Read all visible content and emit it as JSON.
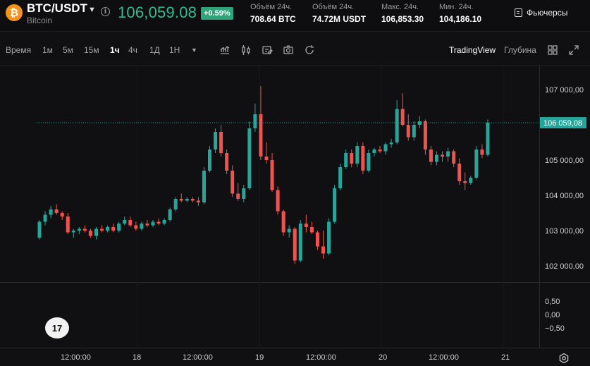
{
  "header": {
    "pair": "BTC/USDT",
    "coin_name": "Bitcoin",
    "logo_glyph": "₿",
    "price": "106,059.08",
    "change": "+0.59%",
    "stats": [
      {
        "label": "Объём 24ч.",
        "value": "708.64 BTC"
      },
      {
        "label": "Объём 24ч.",
        "value": "74.72M USDT"
      },
      {
        "label": "Макс. 24ч.",
        "value": "106,853.30"
      },
      {
        "label": "Мин. 24ч.",
        "value": "104,186.10"
      }
    ],
    "futures_label": "Фьючерсы"
  },
  "toolbar": {
    "time_label": "Время",
    "intervals": [
      "1м",
      "5м",
      "15м",
      "1ч",
      "4ч",
      "1Д",
      "1Н"
    ],
    "active_interval": "1ч",
    "views": [
      "TradingView",
      "Глубина"
    ],
    "active_view": "TradingView"
  },
  "colors": {
    "up": "#26a69a",
    "down": "#ef5350",
    "price_badge": "#26a69a"
  },
  "chart_data": {
    "type": "candlestick",
    "price_ticks": [
      "107 000,00",
      "106 000,00",
      "105 000,00",
      "104 000,00",
      "103 000,00",
      "102 000,00"
    ],
    "price_tick_values": [
      107000,
      106000,
      105000,
      104000,
      103000,
      102000
    ],
    "current_price_label": "106 059,08",
    "current_price": 106059.08,
    "indicator_ticks": [
      "0,50",
      "0,00",
      "−0,50"
    ],
    "indicator_tick_values": [
      0.5,
      0.0,
      -0.5
    ],
    "x_labels": [
      "12:00:00",
      "18",
      "12:00:00",
      "19",
      "12:00:00",
      "20",
      "12:00:00",
      "21"
    ],
    "candles": [
      [
        102800,
        103300,
        102750,
        103250
      ],
      [
        103250,
        103550,
        103150,
        103450
      ],
      [
        103450,
        103700,
        103350,
        103600
      ],
      [
        103600,
        103750,
        103450,
        103500
      ],
      [
        103500,
        103550,
        103300,
        103400
      ],
      [
        103400,
        103500,
        102900,
        102950
      ],
      [
        102950,
        103050,
        102800,
        103000
      ],
      [
        103000,
        103100,
        102900,
        103050
      ],
      [
        103050,
        103150,
        102950,
        103000
      ],
      [
        103000,
        103050,
        102800,
        102850
      ],
      [
        102850,
        103100,
        102750,
        103050
      ],
      [
        103050,
        103150,
        102950,
        103000
      ],
      [
        103000,
        103150,
        102950,
        103100
      ],
      [
        103100,
        103200,
        102950,
        103000
      ],
      [
        103000,
        103250,
        102950,
        103200
      ],
      [
        103200,
        103400,
        103150,
        103300
      ],
      [
        103300,
        103400,
        103100,
        103150
      ],
      [
        103150,
        103250,
        103000,
        103050
      ],
      [
        103050,
        103250,
        103000,
        103200
      ],
      [
        103200,
        103300,
        103100,
        103150
      ],
      [
        103150,
        103300,
        103100,
        103250
      ],
      [
        103250,
        103350,
        103150,
        103200
      ],
      [
        103200,
        103350,
        103150,
        103300
      ],
      [
        103300,
        103650,
        103250,
        103600
      ],
      [
        103600,
        103950,
        103550,
        103900
      ],
      [
        103900,
        104050,
        103800,
        103850
      ],
      [
        103850,
        103950,
        103800,
        103900
      ],
      [
        103900,
        103950,
        103800,
        103850
      ],
      [
        103850,
        103950,
        103700,
        103800
      ],
      [
        103800,
        104800,
        103750,
        104700
      ],
      [
        104700,
        105400,
        104650,
        105300
      ],
      [
        105300,
        105900,
        105200,
        105800
      ],
      [
        105800,
        106000,
        105100,
        105200
      ],
      [
        105200,
        105300,
        104600,
        104700
      ],
      [
        104700,
        104850,
        103950,
        104050
      ],
      [
        104050,
        104350,
        103850,
        103900
      ],
      [
        103900,
        104300,
        103800,
        104200
      ],
      [
        104200,
        106100,
        104150,
        105900
      ],
      [
        105900,
        106600,
        105800,
        106300
      ],
      [
        106300,
        107100,
        105000,
        105100
      ],
      [
        105100,
        105500,
        104900,
        105000
      ],
      [
        105000,
        105200,
        104100,
        104150
      ],
      [
        104150,
        104250,
        103450,
        103550
      ],
      [
        103550,
        103600,
        102850,
        102950
      ],
      [
        102950,
        103150,
        102800,
        103050
      ],
      [
        103050,
        103100,
        102050,
        102150
      ],
      [
        102150,
        103300,
        102100,
        103200
      ],
      [
        103200,
        103450,
        102950,
        103100
      ],
      [
        103100,
        103250,
        102900,
        102950
      ],
      [
        102950,
        103000,
        102450,
        102550
      ],
      [
        102550,
        103000,
        102200,
        102350
      ],
      [
        102350,
        103350,
        102300,
        103250
      ],
      [
        103250,
        104300,
        103200,
        104200
      ],
      [
        104200,
        104900,
        104150,
        104800
      ],
      [
        104800,
        105300,
        104750,
        105200
      ],
      [
        105200,
        105300,
        104800,
        104900
      ],
      [
        104900,
        105500,
        104800,
        105400
      ],
      [
        105400,
        105500,
        104600,
        104700
      ],
      [
        104700,
        105300,
        104650,
        105200
      ],
      [
        105200,
        105350,
        105100,
        105300
      ],
      [
        105300,
        105400,
        105200,
        105250
      ],
      [
        105250,
        105500,
        105150,
        105450
      ],
      [
        105450,
        105600,
        105350,
        105500
      ],
      [
        105500,
        106700,
        105450,
        106450
      ],
      [
        106450,
        106900,
        105950,
        106000
      ],
      [
        106000,
        106300,
        105550,
        105650
      ],
      [
        105650,
        106100,
        105550,
        106000
      ],
      [
        106000,
        106250,
        105900,
        106100
      ],
      [
        106100,
        106150,
        105150,
        105300
      ],
      [
        105300,
        105400,
        104850,
        104950
      ],
      [
        104950,
        105250,
        104850,
        105150
      ],
      [
        105150,
        105250,
        104950,
        105100
      ],
      [
        105100,
        105350,
        104950,
        105250
      ],
      [
        105250,
        105300,
        104800,
        104900
      ],
      [
        104900,
        105050,
        104300,
        104400
      ],
      [
        104400,
        104650,
        104150,
        104350
      ],
      [
        104350,
        104550,
        104300,
        104500
      ],
      [
        104500,
        105400,
        104450,
        105300
      ],
      [
        105300,
        105450,
        105050,
        105150
      ],
      [
        105150,
        106150,
        105100,
        106059.08
      ]
    ]
  }
}
